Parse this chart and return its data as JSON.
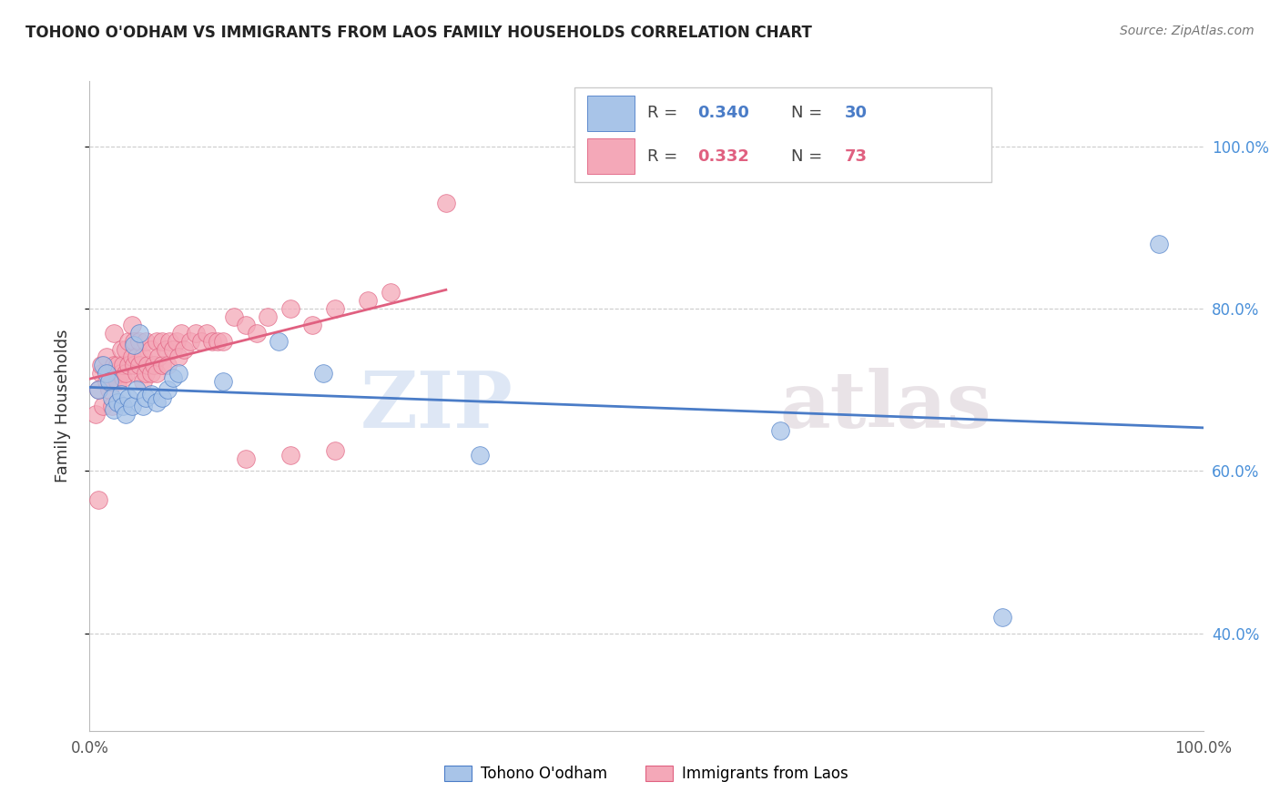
{
  "title": "TOHONO O'ODHAM VS IMMIGRANTS FROM LAOS FAMILY HOUSEHOLDS CORRELATION CHART",
  "source": "Source: ZipAtlas.com",
  "ylabel": "Family Households",
  "legend_blue_R": "0.340",
  "legend_blue_N": "30",
  "legend_pink_R": "0.332",
  "legend_pink_N": "73",
  "legend_label_blue": "Tohono O'odham",
  "legend_label_pink": "Immigrants from Laos",
  "watermark_zip": "ZIP",
  "watermark_atlas": "atlas",
  "blue_color": "#a8c4e8",
  "pink_color": "#f4a8b8",
  "blue_line_color": "#4a7cc7",
  "pink_line_color": "#e06080",
  "blue_scatter_x": [
    0.008,
    0.012,
    0.015,
    0.018,
    0.02,
    0.022,
    0.025,
    0.028,
    0.03,
    0.032,
    0.035,
    0.038,
    0.04,
    0.042,
    0.045,
    0.048,
    0.05,
    0.055,
    0.06,
    0.065,
    0.07,
    0.075,
    0.08,
    0.12,
    0.17,
    0.21,
    0.35,
    0.62,
    0.82,
    0.96
  ],
  "blue_scatter_y": [
    0.7,
    0.73,
    0.72,
    0.71,
    0.69,
    0.675,
    0.685,
    0.695,
    0.68,
    0.67,
    0.69,
    0.68,
    0.755,
    0.7,
    0.77,
    0.68,
    0.69,
    0.695,
    0.685,
    0.69,
    0.7,
    0.715,
    0.72,
    0.71,
    0.76,
    0.72,
    0.62,
    0.65,
    0.42,
    0.88
  ],
  "pink_scatter_x": [
    0.005,
    0.008,
    0.01,
    0.01,
    0.012,
    0.015,
    0.015,
    0.018,
    0.018,
    0.02,
    0.02,
    0.022,
    0.022,
    0.025,
    0.025,
    0.028,
    0.028,
    0.03,
    0.03,
    0.032,
    0.032,
    0.035,
    0.035,
    0.038,
    0.038,
    0.04,
    0.04,
    0.042,
    0.042,
    0.045,
    0.045,
    0.048,
    0.048,
    0.05,
    0.05,
    0.052,
    0.055,
    0.055,
    0.058,
    0.06,
    0.06,
    0.062,
    0.065,
    0.065,
    0.068,
    0.07,
    0.072,
    0.075,
    0.078,
    0.08,
    0.082,
    0.085,
    0.09,
    0.095,
    0.1,
    0.105,
    0.11,
    0.115,
    0.12,
    0.13,
    0.14,
    0.15,
    0.16,
    0.18,
    0.2,
    0.22,
    0.25,
    0.27,
    0.008,
    0.14,
    0.18,
    0.22,
    0.32
  ],
  "pink_scatter_y": [
    0.67,
    0.7,
    0.72,
    0.73,
    0.68,
    0.71,
    0.74,
    0.7,
    0.72,
    0.68,
    0.71,
    0.73,
    0.77,
    0.71,
    0.73,
    0.72,
    0.75,
    0.715,
    0.73,
    0.72,
    0.75,
    0.73,
    0.76,
    0.74,
    0.78,
    0.73,
    0.76,
    0.72,
    0.74,
    0.73,
    0.76,
    0.71,
    0.74,
    0.72,
    0.76,
    0.73,
    0.72,
    0.75,
    0.73,
    0.72,
    0.76,
    0.74,
    0.73,
    0.76,
    0.75,
    0.73,
    0.76,
    0.75,
    0.76,
    0.74,
    0.77,
    0.75,
    0.76,
    0.77,
    0.76,
    0.77,
    0.76,
    0.76,
    0.76,
    0.79,
    0.78,
    0.77,
    0.79,
    0.8,
    0.78,
    0.8,
    0.81,
    0.82,
    0.565,
    0.615,
    0.62,
    0.625,
    0.93
  ],
  "xlim": [
    0.0,
    1.0
  ],
  "ylim": [
    0.28,
    1.08
  ],
  "background_color": "#ffffff",
  "grid_color": "#cccccc"
}
